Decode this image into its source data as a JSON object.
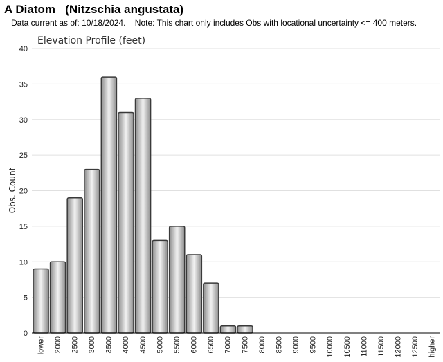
{
  "page": {
    "title": "A Diatom   (Nitzschia angustata)",
    "subtitle": "Data current as of: 10/18/2024.    Note: This chart only includes Obs with locational uncertainty <= 400 meters."
  },
  "colors": {
    "bar_dark": "#8c8c8c",
    "bar_light": "#f2f2f2",
    "bar_stroke": "#3a3a3a",
    "grid": "#e0e0e0"
  },
  "chart_data": {
    "type": "bar",
    "title": "Elevation Profile (feet)",
    "xlabel": "",
    "ylabel": "Obs. Count",
    "ylim": [
      0,
      40
    ],
    "yticks": [
      0,
      5,
      10,
      15,
      20,
      25,
      30,
      35,
      40
    ],
    "grid": true,
    "categories": [
      "lower",
      "2000",
      "2500",
      "3000",
      "3500",
      "4000",
      "4500",
      "5000",
      "5500",
      "6000",
      "6500",
      "7000",
      "7500",
      "8000",
      "8500",
      "9000",
      "9500",
      "10000",
      "10500",
      "11000",
      "11500",
      "12000",
      "12500",
      "higher"
    ],
    "values": [
      9,
      10,
      19,
      23,
      36,
      31,
      33,
      13,
      15,
      11,
      7,
      1,
      1,
      0,
      0,
      0,
      0,
      0,
      0,
      0,
      0,
      0,
      0,
      0
    ]
  }
}
